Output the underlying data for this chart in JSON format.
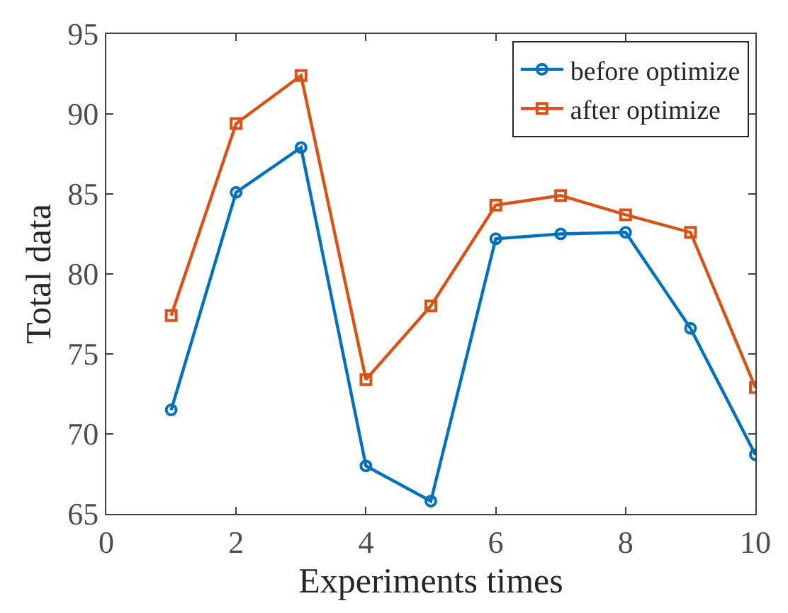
{
  "chart_data": {
    "type": "line",
    "xlabel": "Experiments times",
    "ylabel": "Total data",
    "x": [
      1,
      2,
      3,
      4,
      5,
      6,
      7,
      8,
      9,
      10
    ],
    "series": [
      {
        "name": "before optimize",
        "color": "#0072bd",
        "marker": "circle",
        "values": [
          71.5,
          85.1,
          87.9,
          68.0,
          65.8,
          82.2,
          82.5,
          82.6,
          76.6,
          68.7
        ]
      },
      {
        "name": "after optimize",
        "color": "#d95319",
        "marker": "square",
        "values": [
          77.4,
          89.4,
          92.4,
          73.4,
          78.0,
          84.3,
          84.9,
          83.7,
          82.6,
          72.9
        ]
      }
    ],
    "xlim": [
      0,
      10
    ],
    "xticks": [
      0,
      2,
      4,
      6,
      8,
      10
    ],
    "ylim": [
      65,
      95
    ],
    "yticks": [
      65,
      70,
      75,
      80,
      85,
      90,
      95
    ],
    "legend": "top right",
    "line_style": "solid"
  }
}
